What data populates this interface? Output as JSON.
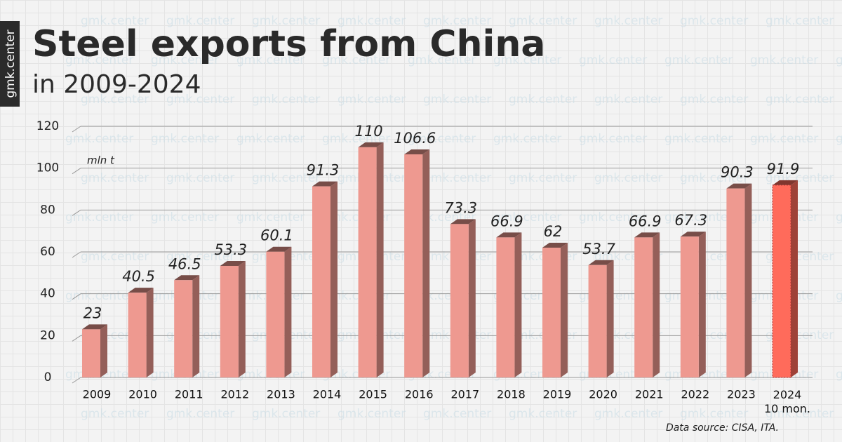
{
  "brand": "gmk.center",
  "chart_data": {
    "type": "bar",
    "title": "Steel exports from China",
    "subtitle": "in 2009-2024",
    "unit_label": "mln t",
    "source": "Data source: CISA, ITA.",
    "categories": [
      "2009",
      "2010",
      "2011",
      "2012",
      "2013",
      "2014",
      "2015",
      "2016",
      "2017",
      "2018",
      "2019",
      "2020",
      "2021",
      "2022",
      "2023",
      "2024\n10 mon."
    ],
    "values": [
      23,
      40.5,
      46.5,
      53.3,
      60.1,
      91.3,
      110,
      106.6,
      73.3,
      66.9,
      62,
      53.7,
      66.9,
      67.3,
      90.3,
      91.9
    ],
    "colors": [
      "#ee9990",
      "#ee9990",
      "#ee9990",
      "#ee9990",
      "#ee9990",
      "#ee9990",
      "#ee9990",
      "#ee9990",
      "#ee9990",
      "#ee9990",
      "#ee9990",
      "#ee9990",
      "#ee9990",
      "#ee9990",
      "#ee9990",
      "#ff6b5b"
    ],
    "ylim": [
      0,
      120
    ],
    "yticks": [
      0,
      20,
      40,
      60,
      80,
      100,
      120
    ],
    "grid": true
  }
}
